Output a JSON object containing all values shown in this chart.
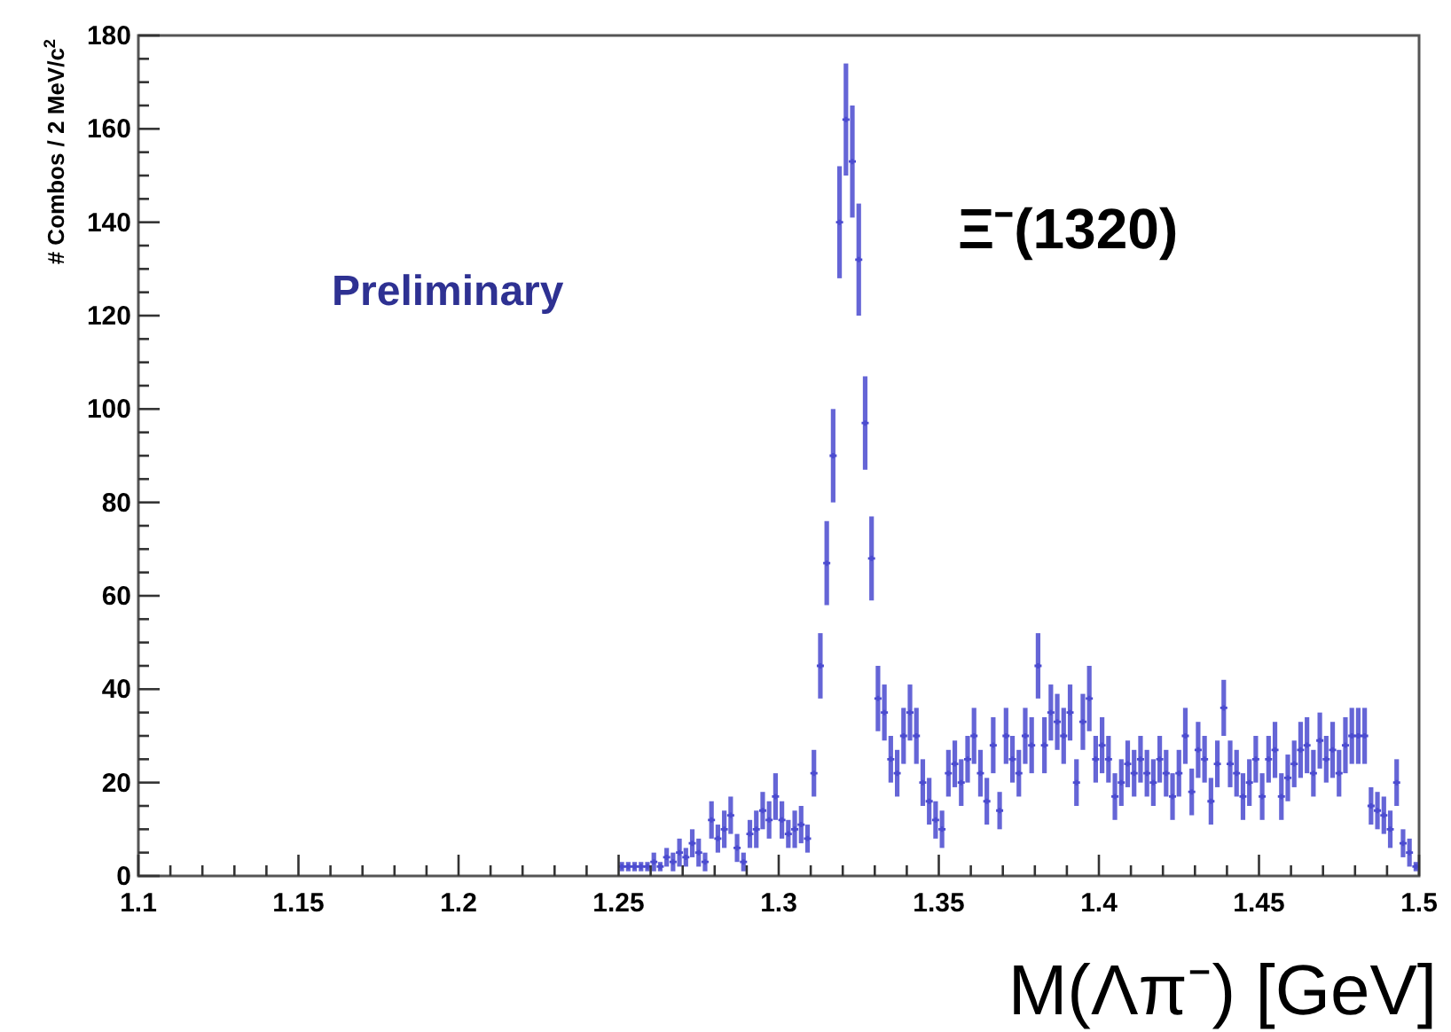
{
  "chart_data": {
    "type": "scatter",
    "xlabel": "M(Λπ⁻) [GeV]",
    "ylabel": "# Combos / 2 MeV/c$^{2}$",
    "annotations": [
      "Preliminary",
      "Ξ⁻(1320)"
    ],
    "xlim": [
      1.1,
      1.5
    ],
    "ylim": [
      0,
      180
    ],
    "xticks": [
      1.1,
      {
        "value": 1.11,
        "label": null
      },
      {
        "value": 1.12,
        "label": null
      },
      {
        "value": 1.13,
        "label": null
      },
      {
        "value": 1.14,
        "label": null
      },
      1.15,
      {
        "value": 1.16,
        "label": null
      },
      {
        "value": 1.17,
        "label": null
      },
      {
        "value": 1.18,
        "label": null
      },
      {
        "value": 1.19,
        "label": null
      },
      1.2,
      {
        "value": 1.21,
        "label": null
      },
      {
        "value": 1.22,
        "label": null
      },
      {
        "value": 1.23,
        "label": null
      },
      {
        "value": 1.24,
        "label": null
      },
      1.25,
      {
        "value": 1.26,
        "label": null
      },
      {
        "value": 1.27,
        "label": null
      },
      {
        "value": 1.28,
        "label": null
      },
      {
        "value": 1.29,
        "label": null
      },
      1.3,
      {
        "value": 1.31,
        "label": null
      },
      {
        "value": 1.32,
        "label": null
      },
      {
        "value": 1.33,
        "label": null
      },
      {
        "value": 1.34,
        "label": null
      },
      1.35,
      {
        "value": 1.36,
        "label": null
      },
      {
        "value": 1.37,
        "label": null
      },
      {
        "value": 1.38,
        "label": null
      },
      {
        "value": 1.39,
        "label": null
      },
      1.4,
      {
        "value": 1.41,
        "label": null
      },
      {
        "value": 1.42,
        "label": null
      },
      {
        "value": 1.43,
        "label": null
      },
      {
        "value": 1.44,
        "label": null
      },
      1.45,
      {
        "value": 1.46,
        "label": null
      },
      {
        "value": 1.47,
        "label": null
      },
      {
        "value": 1.48,
        "label": null
      },
      {
        "value": 1.49,
        "label": null
      },
      1.5
    ],
    "yticks": [
      0,
      {
        "value": 5,
        "label": null
      },
      {
        "value": 10,
        "label": null
      },
      {
        "value": 15,
        "label": null
      },
      20,
      {
        "value": 25,
        "label": null
      },
      {
        "value": 30,
        "label": null
      },
      {
        "value": 35,
        "label": null
      },
      40,
      {
        "value": 45,
        "label": null
      },
      {
        "value": 50,
        "label": null
      },
      {
        "value": 55,
        "label": null
      },
      60,
      {
        "value": 65,
        "label": null
      },
      {
        "value": 70,
        "label": null
      },
      {
        "value": 75,
        "label": null
      },
      80,
      {
        "value": 85,
        "label": null
      },
      {
        "value": 90,
        "label": null
      },
      {
        "value": 95,
        "label": null
      },
      100,
      {
        "value": 105,
        "label": null
      },
      {
        "value": 110,
        "label": null
      },
      {
        "value": 115,
        "label": null
      },
      120,
      {
        "value": 125,
        "label": null
      },
      {
        "value": 130,
        "label": null
      },
      {
        "value": 135,
        "label": null
      },
      140,
      {
        "value": 145,
        "label": null
      },
      {
        "value": 150,
        "label": null
      },
      {
        "value": 155,
        "label": null
      },
      160,
      {
        "value": 165,
        "label": null
      },
      {
        "value": 170,
        "label": null
      },
      {
        "value": 175,
        "label": null
      },
      180
    ],
    "grid": false,
    "marker": "cross",
    "series": [
      {
        "color": "#4b4bd0",
        "x": [
          1.251,
          1.253,
          1.255,
          1.257,
          1.259,
          1.261,
          1.263,
          1.265,
          1.267,
          1.269,
          1.271,
          1.273,
          1.275,
          1.277,
          1.279,
          1.281,
          1.283,
          1.285,
          1.287,
          1.289,
          1.291,
          1.293,
          1.295,
          1.297,
          1.299,
          1.301,
          1.303,
          1.305,
          1.307,
          1.309,
          1.311,
          1.313,
          1.315,
          1.317,
          1.319,
          1.321,
          1.323,
          1.325,
          1.327,
          1.329,
          1.331,
          1.333,
          1.335,
          1.337,
          1.339,
          1.341,
          1.343,
          1.345,
          1.347,
          1.349,
          1.351,
          1.353,
          1.355,
          1.357,
          1.359,
          1.361,
          1.363,
          1.365,
          1.367,
          1.369,
          1.371,
          1.373,
          1.375,
          1.377,
          1.379,
          1.381,
          1.383,
          1.385,
          1.387,
          1.389,
          1.391,
          1.393,
          1.395,
          1.397,
          1.399,
          1.401,
          1.403,
          1.405,
          1.407,
          1.409,
          1.411,
          1.413,
          1.415,
          1.417,
          1.419,
          1.421,
          1.423,
          1.425,
          1.427,
          1.429,
          1.431,
          1.433,
          1.435,
          1.437,
          1.439,
          1.441,
          1.443,
          1.445,
          1.447,
          1.449,
          1.451,
          1.453,
          1.455,
          1.457,
          1.459,
          1.461,
          1.463,
          1.465,
          1.467,
          1.469,
          1.471,
          1.473,
          1.475,
          1.477,
          1.479,
          1.481,
          1.483,
          1.485,
          1.487,
          1.489,
          1.491,
          1.493,
          1.495,
          1.497,
          1.499
        ],
        "values": [
          2,
          2,
          2,
          2,
          2,
          3,
          2,
          4,
          3,
          5,
          4,
          7,
          5,
          3,
          12,
          8,
          10,
          13,
          6,
          3,
          9,
          10,
          14,
          12,
          17,
          12,
          9,
          10,
          11,
          8,
          22,
          45,
          67,
          90,
          140,
          162,
          153,
          132,
          97,
          68,
          38,
          35,
          25,
          22,
          30,
          35,
          30,
          20,
          16,
          12,
          10,
          22,
          24,
          20,
          25,
          30,
          22,
          16,
          28,
          14,
          30,
          25,
          22,
          30,
          28,
          45,
          28,
          35,
          33,
          30,
          35,
          20,
          33,
          38,
          25,
          28,
          25,
          17,
          20,
          24,
          22,
          25,
          22,
          20,
          25,
          22,
          17,
          22,
          30,
          18,
          27,
          25,
          16,
          24,
          36,
          24,
          22,
          17,
          20,
          25,
          17,
          25,
          27,
          17,
          21,
          24,
          27,
          28,
          22,
          29,
          25,
          27,
          22,
          28,
          30,
          30,
          30,
          15,
          14,
          13,
          10,
          20,
          7,
          5,
          2
        ],
        "errors": [
          1,
          1,
          1,
          1,
          1,
          2,
          1,
          2,
          2,
          3,
          2,
          3,
          3,
          2,
          4,
          3,
          4,
          4,
          3,
          2,
          3,
          4,
          4,
          4,
          5,
          4,
          3,
          4,
          4,
          3,
          5,
          7,
          9,
          10,
          12,
          12,
          12,
          12,
          10,
          9,
          7,
          6,
          5,
          5,
          6,
          6,
          6,
          5,
          5,
          4,
          4,
          5,
          5,
          5,
          5,
          6,
          5,
          5,
          6,
          4,
          6,
          5,
          5,
          6,
          6,
          7,
          6,
          6,
          6,
          6,
          6,
          5,
          6,
          7,
          5,
          6,
          5,
          5,
          5,
          5,
          5,
          5,
          5,
          5,
          5,
          5,
          5,
          5,
          6,
          5,
          6,
          5,
          5,
          5,
          6,
          5,
          5,
          5,
          5,
          5,
          5,
          5,
          6,
          5,
          5,
          5,
          6,
          6,
          5,
          6,
          5,
          6,
          5,
          6,
          6,
          6,
          6,
          4,
          4,
          4,
          4,
          5,
          3,
          3,
          1
        ]
      }
    ]
  }
}
